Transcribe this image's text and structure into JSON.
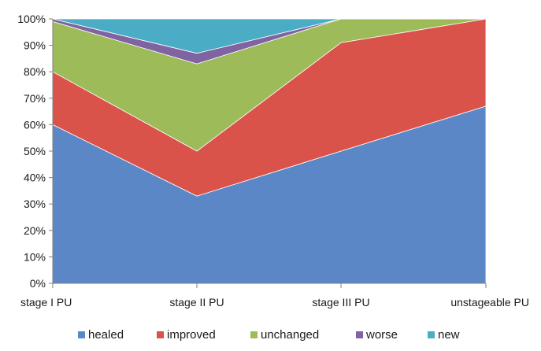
{
  "chart_data": {
    "type": "area",
    "stacked": true,
    "percent": true,
    "categories": [
      "stage I PU",
      "stage II PU",
      "stage III PU",
      "unstageable PU"
    ],
    "series": [
      {
        "name": "healed",
        "values": [
          60,
          33,
          50,
          67
        ],
        "color": "#5B87C6"
      },
      {
        "name": "improved",
        "values": [
          20,
          17,
          41,
          33
        ],
        "color": "#D9534A"
      },
      {
        "name": "unchanged",
        "values": [
          19,
          33,
          9,
          0
        ],
        "color": "#9DBB59"
      },
      {
        "name": "worse",
        "values": [
          1,
          4,
          0,
          0
        ],
        "color": "#8064A2"
      },
      {
        "name": "new",
        "values": [
          0,
          13,
          0,
          0
        ],
        "color": "#4BACC6"
      }
    ],
    "ylim": [
      0,
      100
    ],
    "yticks": [
      "0%",
      "10%",
      "20%",
      "30%",
      "40%",
      "50%",
      "60%",
      "70%",
      "80%",
      "90%",
      "100%"
    ],
    "grid": false,
    "legend": "bottom"
  }
}
